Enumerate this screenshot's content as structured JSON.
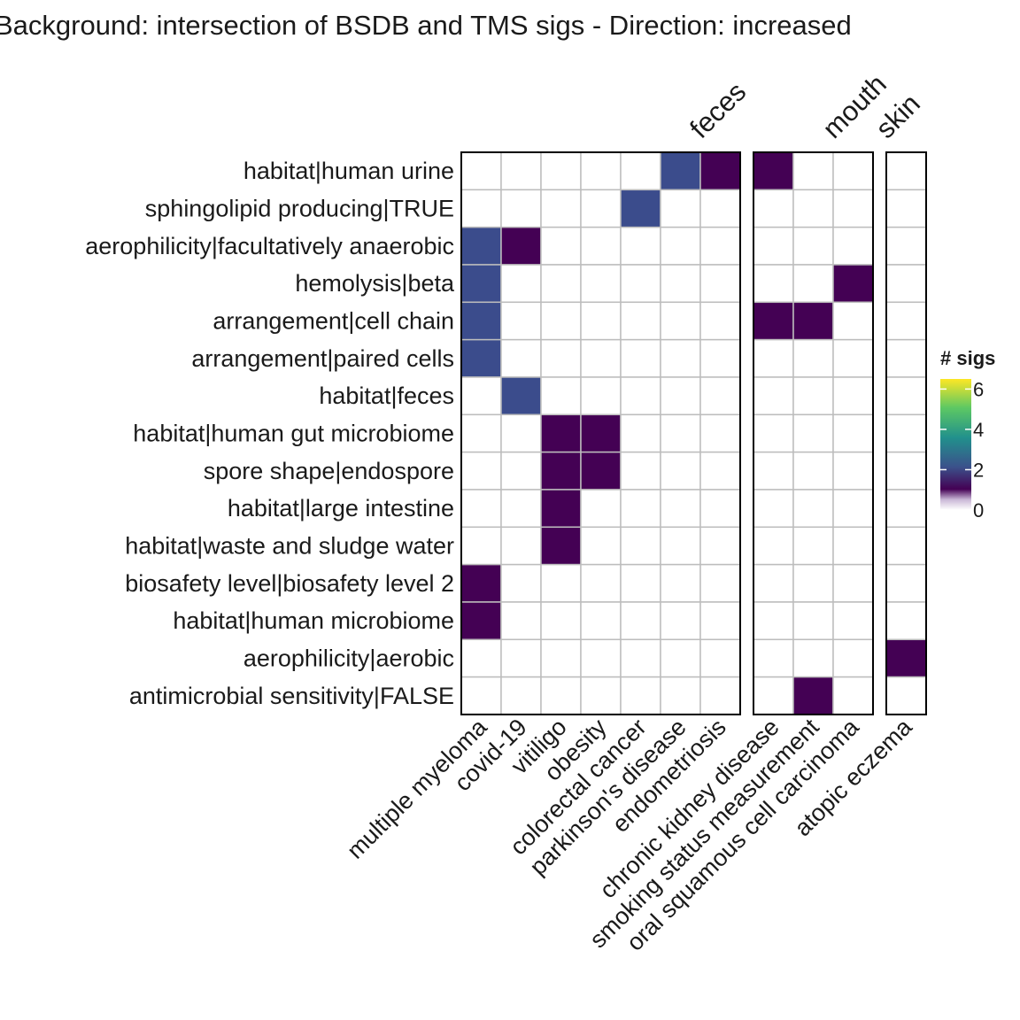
{
  "chart_data": {
    "type": "heatmap",
    "title": "Background: intersection of BSDB and TMS sigs - Direction: increased",
    "rows": [
      "habitat|human urine",
      "sphingolipid producing|TRUE",
      "aerophilicity|facultatively anaerobic",
      "hemolysis|beta",
      "arrangement|cell chain",
      "arrangement|paired cells",
      "habitat|feces",
      "habitat|human gut microbiome",
      "spore shape|endospore",
      "habitat|large intestine",
      "habitat|waste and sludge water",
      "biosafety level|biosafety level 2",
      "habitat|human microbiome",
      "aerophilicity|aerobic",
      "antimicrobial sensitivity|FALSE"
    ],
    "facets": [
      {
        "name": "feces",
        "columns": [
          "multiple myeloma",
          "covid-19",
          "vitiligo",
          "obesity",
          "colorectal cancer",
          "parkinson's disease",
          "endometriosis"
        ],
        "values": [
          [
            0,
            0,
            0,
            0,
            0,
            2,
            1
          ],
          [
            0,
            0,
            0,
            0,
            2,
            0,
            0
          ],
          [
            2,
            1,
            0,
            0,
            0,
            0,
            0
          ],
          [
            2,
            0,
            0,
            0,
            0,
            0,
            0
          ],
          [
            2,
            0,
            0,
            0,
            0,
            0,
            0
          ],
          [
            2,
            0,
            0,
            0,
            0,
            0,
            0
          ],
          [
            0,
            2,
            0,
            0,
            0,
            0,
            0
          ],
          [
            0,
            0,
            1,
            1,
            0,
            0,
            0
          ],
          [
            0,
            0,
            1,
            1,
            0,
            0,
            0
          ],
          [
            0,
            0,
            1,
            0,
            0,
            0,
            0
          ],
          [
            0,
            0,
            1,
            0,
            0,
            0,
            0
          ],
          [
            1,
            0,
            0,
            0,
            0,
            0,
            0
          ],
          [
            1,
            0,
            0,
            0,
            0,
            0,
            0
          ],
          [
            0,
            0,
            0,
            0,
            0,
            0,
            0
          ],
          [
            0,
            0,
            0,
            0,
            0,
            0,
            0
          ]
        ]
      },
      {
        "name": "mouth",
        "columns": [
          "chronic kidney disease",
          "smoking status measurement",
          "oral squamous cell carcinoma"
        ],
        "values": [
          [
            1,
            0,
            0
          ],
          [
            0,
            0,
            0
          ],
          [
            0,
            0,
            0
          ],
          [
            0,
            0,
            1
          ],
          [
            1,
            1,
            0
          ],
          [
            0,
            0,
            0
          ],
          [
            0,
            0,
            0
          ],
          [
            0,
            0,
            0
          ],
          [
            0,
            0,
            0
          ],
          [
            0,
            0,
            0
          ],
          [
            0,
            0,
            0
          ],
          [
            0,
            0,
            0
          ],
          [
            0,
            0,
            0
          ],
          [
            0,
            0,
            0
          ],
          [
            0,
            1,
            0
          ]
        ]
      },
      {
        "name": "skin",
        "columns": [
          "atopic eczema"
        ],
        "values": [
          [
            0
          ],
          [
            0
          ],
          [
            0
          ],
          [
            0
          ],
          [
            0
          ],
          [
            0
          ],
          [
            0
          ],
          [
            0
          ],
          [
            0
          ],
          [
            0
          ],
          [
            0
          ],
          [
            0
          ],
          [
            0
          ],
          [
            1
          ],
          [
            0
          ]
        ]
      }
    ],
    "legend": {
      "title": "# sigs",
      "ticks": [
        0,
        2,
        4,
        6
      ],
      "range": [
        0,
        6.5
      ],
      "placement": "right",
      "colors": [
        "#ffffff",
        "#440154",
        "#3b528b",
        "#21908c",
        "#5dc863",
        "#fde725"
      ]
    }
  }
}
